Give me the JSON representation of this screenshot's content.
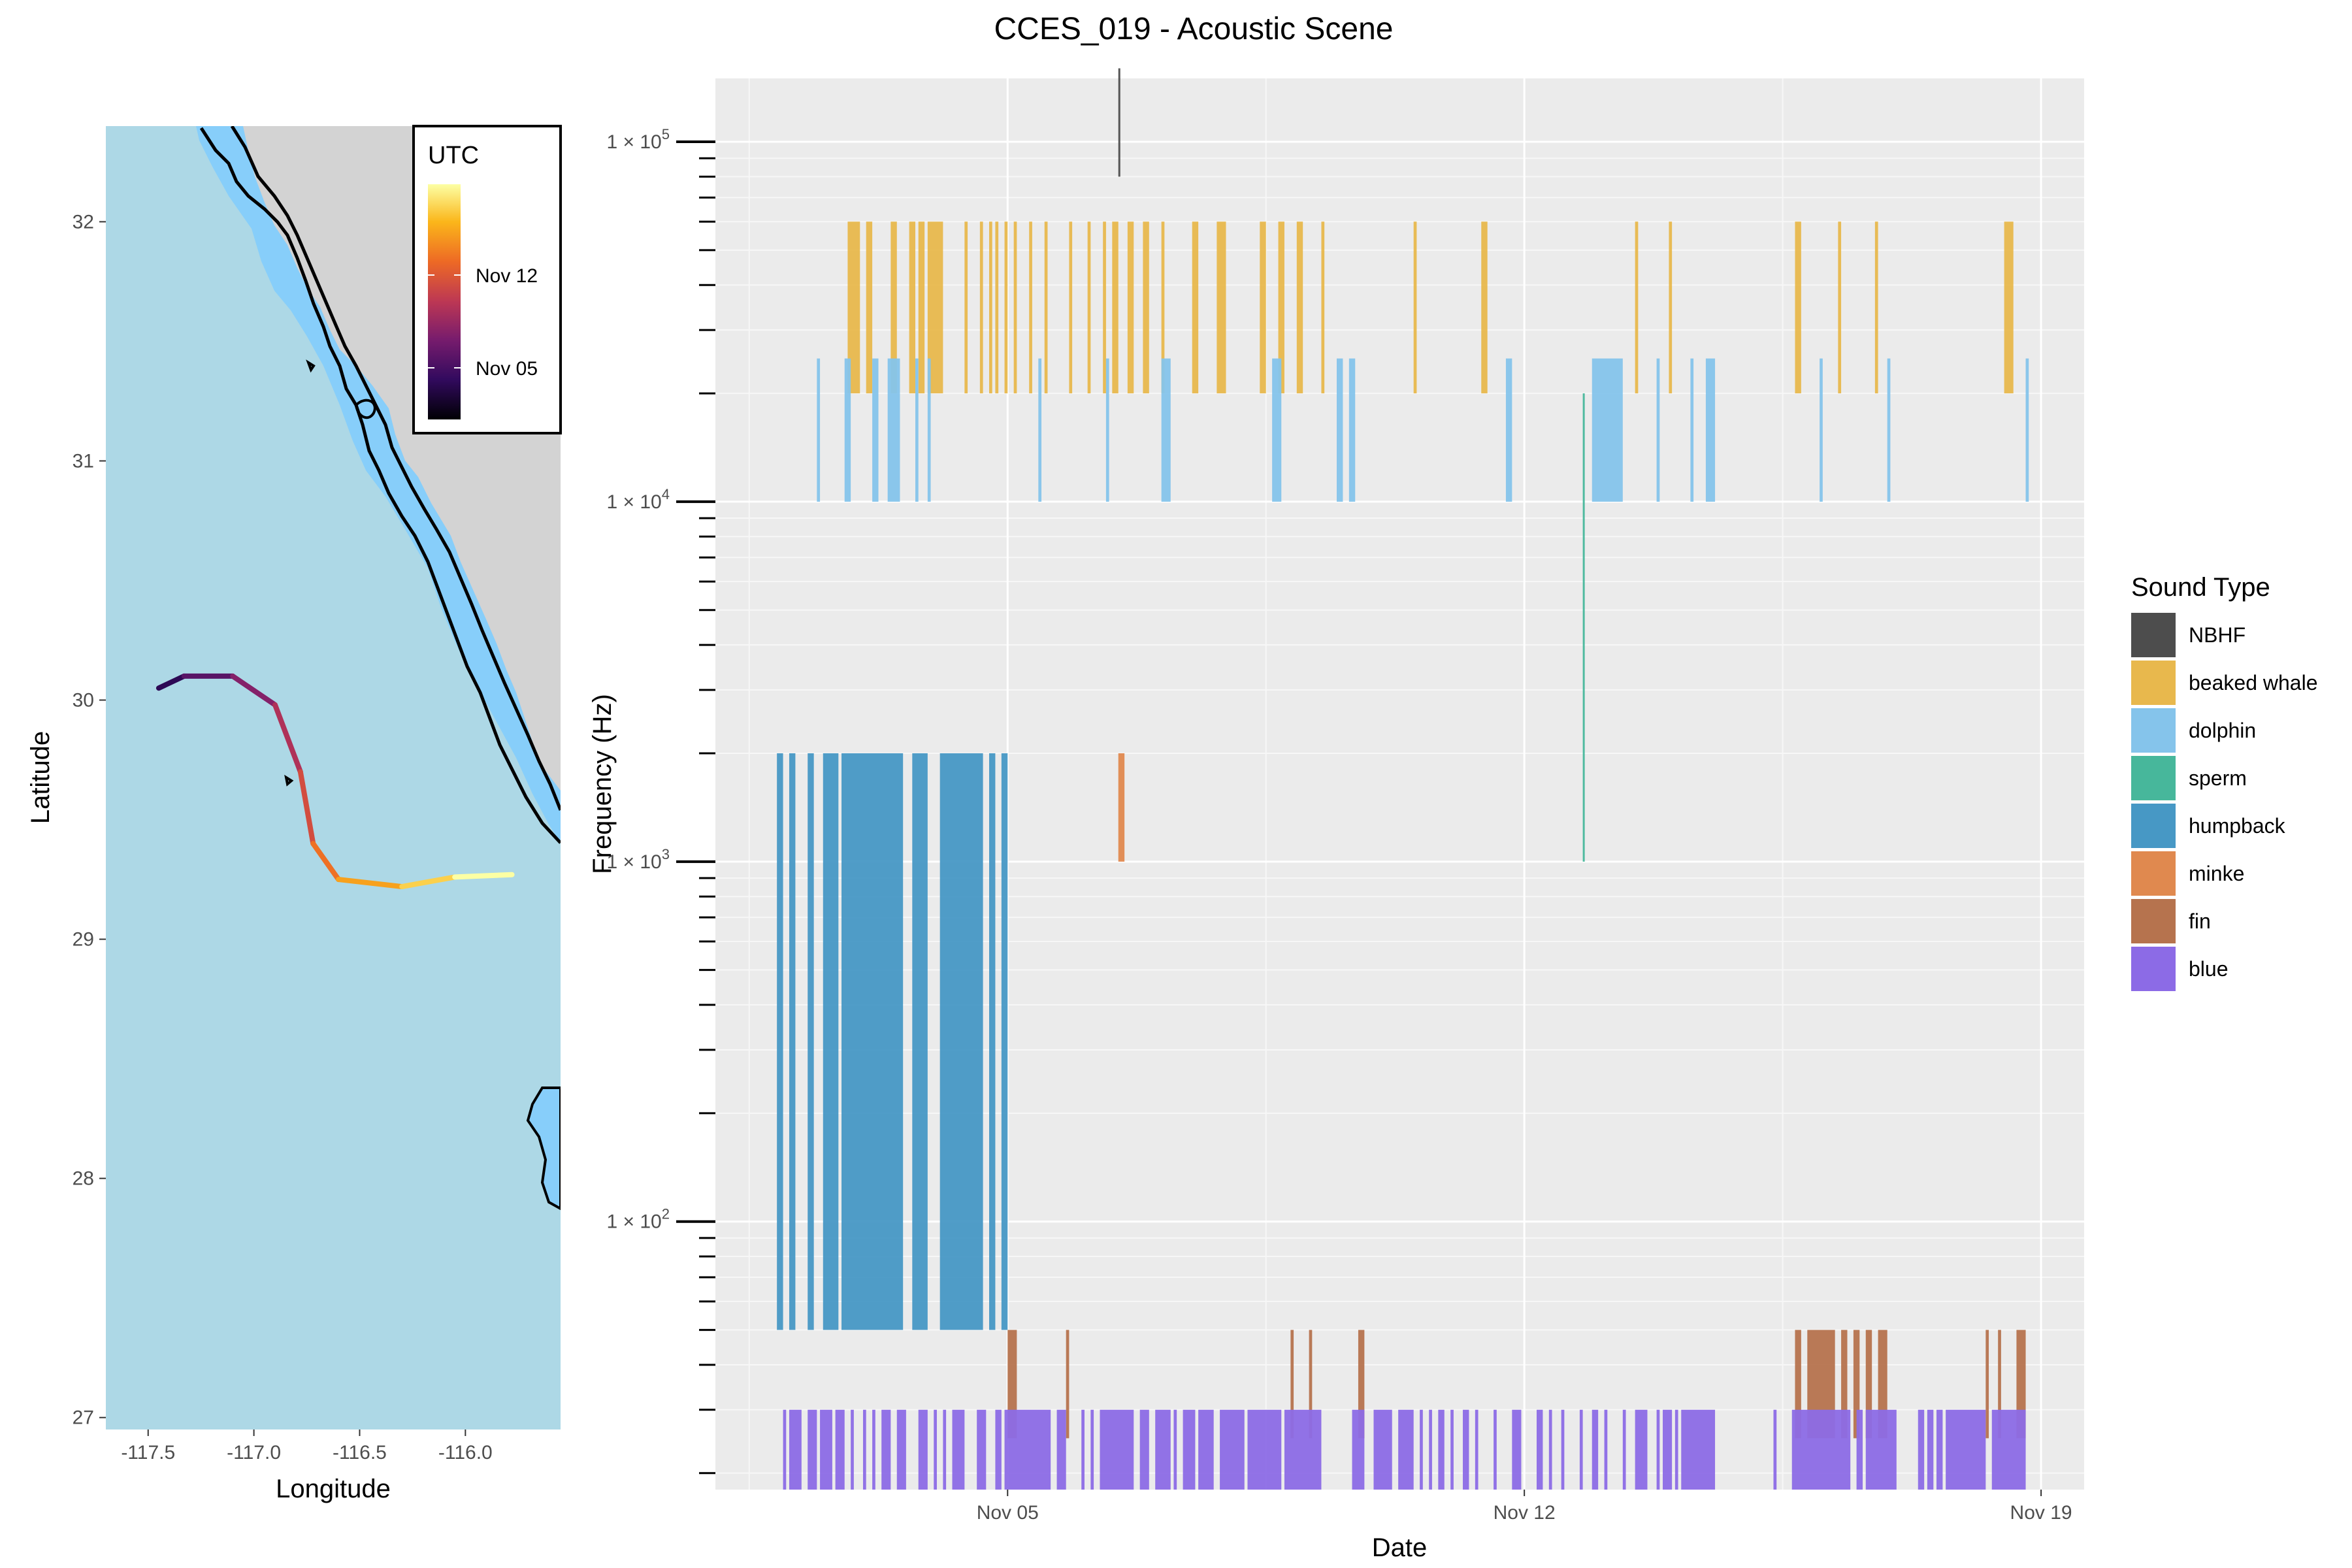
{
  "chart_data": [
    {
      "type": "map",
      "title": "",
      "xlabel": "Longitude",
      "ylabel": "Latitude",
      "xlim": [
        -117.7,
        -115.55
      ],
      "ylim": [
        26.95,
        32.4
      ],
      "x_ticks": [
        -117.5,
        -117.0,
        -116.5,
        -116.0
      ],
      "x_tick_labels": [
        "-117.5",
        "-117.0",
        "-116.5",
        "-116.0"
      ],
      "y_ticks": [
        27,
        28,
        29,
        30,
        31,
        32
      ],
      "y_tick_labels": [
        "27",
        "28",
        "29",
        "30",
        "31",
        "32"
      ],
      "grid": false,
      "colors": {
        "ocean": "#add8e6",
        "land": "#d3d3d3",
        "shelf": "#87cefa",
        "contour": "#000000"
      },
      "legend": {
        "title": "UTC",
        "placement": "top-right",
        "labels": [
          "Nov 12",
          "Nov 05"
        ],
        "palette": [
          "#fcffa4",
          "#fbb61a",
          "#ed6925",
          "#bc3754",
          "#781c6d",
          "#320a5e",
          "#000004"
        ]
      },
      "track": [
        {
          "lon": -117.45,
          "lat": 30.05,
          "date": "Nov 02"
        },
        {
          "lon": -117.33,
          "lat": 30.1,
          "date": "Nov 03"
        },
        {
          "lon": -117.1,
          "lat": 30.1,
          "date": "Nov 04"
        },
        {
          "lon": -116.9,
          "lat": 29.98,
          "date": "Nov 05"
        },
        {
          "lon": -116.78,
          "lat": 29.7,
          "date": "Nov 07"
        },
        {
          "lon": -116.72,
          "lat": 29.4,
          "date": "Nov 09"
        },
        {
          "lon": -116.6,
          "lat": 29.25,
          "date": "Nov 11"
        },
        {
          "lon": -116.3,
          "lat": 29.22,
          "date": "Nov 13"
        },
        {
          "lon": -116.05,
          "lat": 29.26,
          "date": "Nov 15"
        },
        {
          "lon": -115.78,
          "lat": 29.27,
          "date": "Nov 18"
        }
      ]
    },
    {
      "type": "bar",
      "title": "CCES_019 - Acoustic Scene",
      "xlabel": "Date",
      "ylabel": "Frequency (Hz)",
      "x_ticks": [
        "2018-11-05",
        "2018-11-12",
        "2018-11-19"
      ],
      "x_tick_labels": [
        "Nov 05",
        "Nov 12",
        "Nov 19"
      ],
      "xlim": [
        "2018-11-01T01:00",
        "2018-11-19T14:00"
      ],
      "y_scale": "log10",
      "ylim": [
        18,
        150000
      ],
      "y_tick_labels": [
        "1 × 10^5",
        "1 × 10^4",
        "1 × 10^3",
        "1 × 10^2"
      ],
      "y_tick_values": [
        100000,
        10000,
        1000,
        100
      ],
      "grid": true,
      "legend": {
        "title": "Sound Type",
        "placement": "right",
        "entries": [
          {
            "name": "NBHF",
            "color": "#4d4d4d"
          },
          {
            "name": "beaked whale",
            "color": "#e8b84d"
          },
          {
            "name": "dolphin",
            "color": "#85c4eb"
          },
          {
            "name": "sperm",
            "color": "#47b79b"
          },
          {
            "name": "humpback",
            "color": "#4798c5"
          },
          {
            "name": "minke",
            "color": "#e0894f"
          },
          {
            "name": "fin",
            "color": "#b6734e"
          },
          {
            "name": "blue",
            "color": "#8c6be6"
          }
        ]
      },
      "series": [
        {
          "name": "NBHF",
          "freq_range": [
            80000,
            160000
          ],
          "spans": [
            [
              "2018-11-06T12:00",
              "2018-11-06T12:30"
            ]
          ]
        },
        {
          "name": "beaked whale",
          "freq_range": [
            20000,
            60000
          ],
          "spans": [
            [
              "2018-11-02T20:00",
              "2018-11-03T00:00"
            ],
            [
              "2018-11-03T02:00",
              "2018-11-03T04:00"
            ],
            [
              "2018-11-03T10:00",
              "2018-11-03T12:00"
            ],
            [
              "2018-11-03T16:00",
              "2018-11-03T18:00"
            ],
            [
              "2018-11-03T19:00",
              "2018-11-03T21:00"
            ],
            [
              "2018-11-03T22:00",
              "2018-11-04T03:00"
            ],
            [
              "2018-11-04T10:00",
              "2018-11-04T11:00"
            ],
            [
              "2018-11-04T15:00",
              "2018-11-04T16:00"
            ],
            [
              "2018-11-04T18:00",
              "2018-11-04T19:00"
            ],
            [
              "2018-11-04T20:00",
              "2018-11-04T21:00"
            ],
            [
              "2018-11-04T23:00",
              "2018-11-05T00:00"
            ],
            [
              "2018-11-05T02:00",
              "2018-11-05T03:00"
            ],
            [
              "2018-11-05T07:00",
              "2018-11-05T08:00"
            ],
            [
              "2018-11-05T12:00",
              "2018-11-05T13:00"
            ],
            [
              "2018-11-05T20:00",
              "2018-11-05T21:00"
            ],
            [
              "2018-11-06T02:00",
              "2018-11-06T03:00"
            ],
            [
              "2018-11-06T07:00",
              "2018-11-06T08:00"
            ],
            [
              "2018-11-06T10:00",
              "2018-11-06T12:00"
            ],
            [
              "2018-11-06T15:00",
              "2018-11-06T17:00"
            ],
            [
              "2018-11-06T20:00",
              "2018-11-06T22:00"
            ],
            [
              "2018-11-07T02:00",
              "2018-11-07T03:00"
            ],
            [
              "2018-11-07T12:00",
              "2018-11-07T14:00"
            ],
            [
              "2018-11-07T20:00",
              "2018-11-07T23:00"
            ],
            [
              "2018-11-08T10:00",
              "2018-11-08T12:00"
            ],
            [
              "2018-11-08T16:00",
              "2018-11-08T18:00"
            ],
            [
              "2018-11-08T22:00",
              "2018-11-09T00:00"
            ],
            [
              "2018-11-09T06:00",
              "2018-11-09T07:00"
            ],
            [
              "2018-11-10T12:00",
              "2018-11-10T13:00"
            ],
            [
              "2018-11-11T10:00",
              "2018-11-11T12:00"
            ],
            [
              "2018-11-13T12:00",
              "2018-11-13T13:00"
            ],
            [
              "2018-11-13T23:00",
              "2018-11-14T00:00"
            ],
            [
              "2018-11-15T16:00",
              "2018-11-15T18:00"
            ],
            [
              "2018-11-16T06:00",
              "2018-11-16T07:00"
            ],
            [
              "2018-11-16T18:00",
              "2018-11-16T19:00"
            ],
            [
              "2018-11-18T12:00",
              "2018-11-18T15:00"
            ]
          ]
        },
        {
          "name": "dolphin",
          "freq_range": [
            10000,
            25000
          ],
          "spans": [
            [
              "2018-11-02T10:00",
              "2018-11-02T11:00"
            ],
            [
              "2018-11-02T19:00",
              "2018-11-02T21:00"
            ],
            [
              "2018-11-03T04:00",
              "2018-11-03T06:00"
            ],
            [
              "2018-11-03T09:00",
              "2018-11-03T13:00"
            ],
            [
              "2018-11-03T18:00",
              "2018-11-03T19:00"
            ],
            [
              "2018-11-03T22:00",
              "2018-11-03T23:00"
            ],
            [
              "2018-11-05T10:00",
              "2018-11-05T11:00"
            ],
            [
              "2018-11-06T08:00",
              "2018-11-06T09:00"
            ],
            [
              "2018-11-07T02:00",
              "2018-11-07T05:00"
            ],
            [
              "2018-11-08T14:00",
              "2018-11-08T17:00"
            ],
            [
              "2018-11-09T11:00",
              "2018-11-09T13:00"
            ],
            [
              "2018-11-09T15:00",
              "2018-11-09T17:00"
            ],
            [
              "2018-11-11T18:00",
              "2018-11-11T20:00"
            ],
            [
              "2018-11-12T22:00",
              "2018-11-13T08:00"
            ],
            [
              "2018-11-13T19:00",
              "2018-11-13T20:00"
            ],
            [
              "2018-11-14T06:00",
              "2018-11-14T07:00"
            ],
            [
              "2018-11-14T11:00",
              "2018-11-14T14:00"
            ],
            [
              "2018-11-16T00:00",
              "2018-11-16T01:00"
            ],
            [
              "2018-11-16T22:00",
              "2018-11-16T23:00"
            ],
            [
              "2018-11-18T19:00",
              "2018-11-18T20:00"
            ]
          ]
        },
        {
          "name": "sperm",
          "freq_range": [
            1000,
            20000
          ],
          "spans": [
            [
              "2018-11-12T19:00",
              "2018-11-12T19:30"
            ]
          ]
        },
        {
          "name": "humpback",
          "freq_range": [
            50,
            2000
          ],
          "spans": [
            [
              "2018-11-01T21:00",
              "2018-11-01T23:00"
            ],
            [
              "2018-11-02T01:00",
              "2018-11-02T03:00"
            ],
            [
              "2018-11-02T07:00",
              "2018-11-02T09:00"
            ],
            [
              "2018-11-02T12:00",
              "2018-11-02T17:00"
            ],
            [
              "2018-11-02T18:00",
              "2018-11-03T14:00"
            ],
            [
              "2018-11-03T17:00",
              "2018-11-03T22:00"
            ],
            [
              "2018-11-04T02:00",
              "2018-11-04T16:00"
            ],
            [
              "2018-11-04T18:00",
              "2018-11-04T20:00"
            ],
            [
              "2018-11-04T22:00",
              "2018-11-05T00:00"
            ]
          ]
        },
        {
          "name": "minke",
          "freq_range": [
            1000,
            2000
          ],
          "spans": [
            [
              "2018-11-06T12:00",
              "2018-11-06T14:00"
            ]
          ]
        },
        {
          "name": "fin",
          "freq_range": [
            25,
            50
          ],
          "spans": [
            [
              "2018-11-05T00:00",
              "2018-11-05T03:00"
            ],
            [
              "2018-11-05T19:00",
              "2018-11-05T20:00"
            ],
            [
              "2018-11-08T20:00",
              "2018-11-08T21:00"
            ],
            [
              "2018-11-09T02:00",
              "2018-11-09T03:00"
            ],
            [
              "2018-11-09T18:00",
              "2018-11-09T20:00"
            ],
            [
              "2018-11-15T16:00",
              "2018-11-15T18:00"
            ],
            [
              "2018-11-15T20:00",
              "2018-11-16T05:00"
            ],
            [
              "2018-11-16T07:00",
              "2018-11-16T09:00"
            ],
            [
              "2018-11-16T11:00",
              "2018-11-16T13:00"
            ],
            [
              "2018-11-16T15:00",
              "2018-11-16T17:00"
            ],
            [
              "2018-11-16T19:00",
              "2018-11-16T22:00"
            ],
            [
              "2018-11-18T06:00",
              "2018-11-18T07:00"
            ],
            [
              "2018-11-18T10:00",
              "2018-11-18T11:00"
            ],
            [
              "2018-11-18T16:00",
              "2018-11-18T19:00"
            ]
          ]
        },
        {
          "name": "blue",
          "freq_range": [
            18,
            30
          ],
          "spans": [
            [
              "2018-11-01T23:00",
              "2018-11-02T00:00"
            ],
            [
              "2018-11-02T01:00",
              "2018-11-02T05:00"
            ],
            [
              "2018-11-02T07:00",
              "2018-11-02T10:00"
            ],
            [
              "2018-11-02T11:00",
              "2018-11-02T15:00"
            ],
            [
              "2018-11-02T16:00",
              "2018-11-02T19:00"
            ],
            [
              "2018-11-02T21:00",
              "2018-11-02T22:00"
            ],
            [
              "2018-11-03T01:00",
              "2018-11-03T02:00"
            ],
            [
              "2018-11-03T04:00",
              "2018-11-03T05:00"
            ],
            [
              "2018-11-03T07:00",
              "2018-11-03T10:00"
            ],
            [
              "2018-11-03T12:00",
              "2018-11-03T15:00"
            ],
            [
              "2018-11-03T19:00",
              "2018-11-03T22:00"
            ],
            [
              "2018-11-04T00:00",
              "2018-11-04T01:00"
            ],
            [
              "2018-11-04T03:00",
              "2018-11-04T04:00"
            ],
            [
              "2018-11-04T06:00",
              "2018-11-04T10:00"
            ],
            [
              "2018-11-04T14:00",
              "2018-11-04T17:00"
            ],
            [
              "2018-11-04T20:00",
              "2018-11-04T22:00"
            ],
            [
              "2018-11-04T23:00",
              "2018-11-05T14:00"
            ],
            [
              "2018-11-05T16:00",
              "2018-11-05T19:00"
            ],
            [
              "2018-11-06T00:00",
              "2018-11-06T01:00"
            ],
            [
              "2018-11-06T03:00",
              "2018-11-06T04:00"
            ],
            [
              "2018-11-06T06:00",
              "2018-11-06T17:00"
            ],
            [
              "2018-11-06T19:00",
              "2018-11-06T22:00"
            ],
            [
              "2018-11-07T00:00",
              "2018-11-07T05:00"
            ],
            [
              "2018-11-07T06:00",
              "2018-11-07T07:00"
            ],
            [
              "2018-11-07T09:00",
              "2018-11-07T13:00"
            ],
            [
              "2018-11-07T14:00",
              "2018-11-07T19:00"
            ],
            [
              "2018-11-07T21:00",
              "2018-11-08T05:00"
            ],
            [
              "2018-11-08T06:00",
              "2018-11-08T17:00"
            ],
            [
              "2018-11-08T18:00",
              "2018-11-09T06:00"
            ],
            [
              "2018-11-09T16:00",
              "2018-11-09T20:00"
            ],
            [
              "2018-11-09T23:00",
              "2018-11-10T05:00"
            ],
            [
              "2018-11-10T07:00",
              "2018-11-10T12:00"
            ],
            [
              "2018-11-10T14:00",
              "2018-11-10T15:00"
            ],
            [
              "2018-11-10T17:00",
              "2018-11-10T18:00"
            ],
            [
              "2018-11-10T20:00",
              "2018-11-10T22:00"
            ],
            [
              "2018-11-11T00:00",
              "2018-11-11T01:00"
            ],
            [
              "2018-11-11T04:00",
              "2018-11-11T06:00"
            ],
            [
              "2018-11-11T08:00",
              "2018-11-11T09:00"
            ],
            [
              "2018-11-11T14:00",
              "2018-11-11T15:00"
            ],
            [
              "2018-11-11T20:00",
              "2018-11-11T23:00"
            ],
            [
              "2018-11-12T04:00",
              "2018-11-12T06:00"
            ],
            [
              "2018-11-12T08:00",
              "2018-11-12T09:00"
            ],
            [
              "2018-11-12T12:00",
              "2018-11-12T13:00"
            ],
            [
              "2018-11-12T18:00",
              "2018-11-12T19:00"
            ],
            [
              "2018-11-12T22:00",
              "2018-11-13T00:00"
            ],
            [
              "2018-11-13T02:00",
              "2018-11-13T03:00"
            ],
            [
              "2018-11-13T08:00",
              "2018-11-13T09:00"
            ],
            [
              "2018-11-13T12:00",
              "2018-11-13T16:00"
            ],
            [
              "2018-11-13T19:00",
              "2018-11-13T20:00"
            ],
            [
              "2018-11-13T21:00",
              "2018-11-14T00:00"
            ],
            [
              "2018-11-14T01:00",
              "2018-11-14T02:00"
            ],
            [
              "2018-11-14T03:00",
              "2018-11-14T14:00"
            ],
            [
              "2018-11-15T09:00",
              "2018-11-15T10:00"
            ],
            [
              "2018-11-15T15:00",
              "2018-11-16T10:00"
            ],
            [
              "2018-11-16T12:00",
              "2018-11-16T14:00"
            ],
            [
              "2018-11-16T15:00",
              "2018-11-17T01:00"
            ],
            [
              "2018-11-17T08:00",
              "2018-11-17T10:00"
            ],
            [
              "2018-11-17T11:00",
              "2018-11-17T13:00"
            ],
            [
              "2018-11-17T14:00",
              "2018-11-17T16:00"
            ],
            [
              "2018-11-17T17:00",
              "2018-11-18T06:00"
            ],
            [
              "2018-11-18T08:00",
              "2018-11-18T19:00"
            ]
          ]
        }
      ]
    }
  ]
}
